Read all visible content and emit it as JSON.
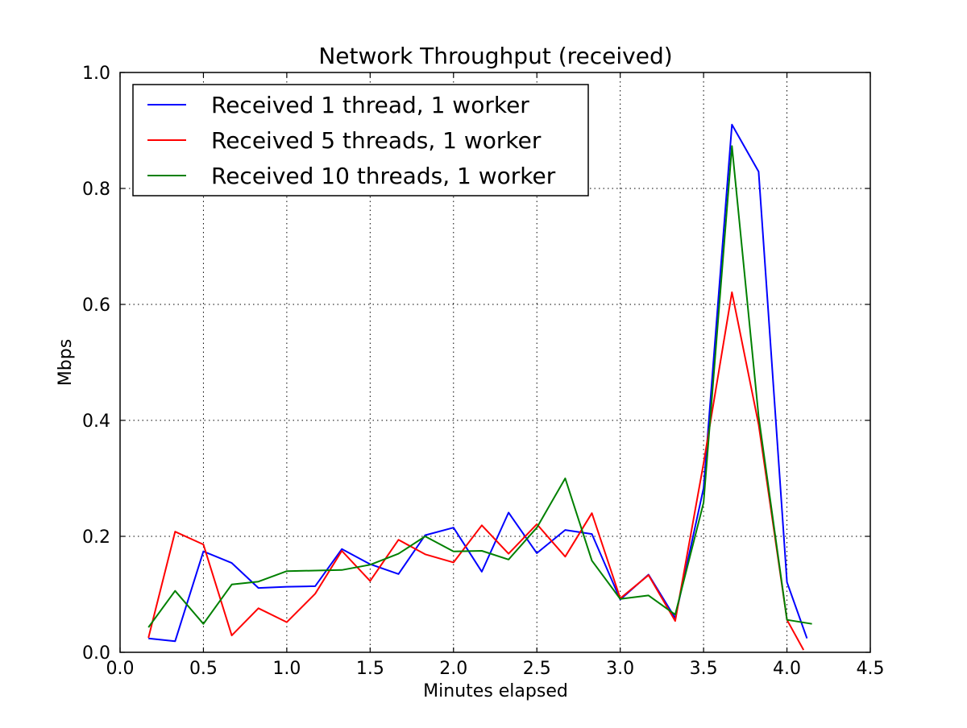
{
  "chart_data": {
    "type": "line",
    "title": "Network Throughput (received)",
    "xlabel": "Minutes elapsed",
    "ylabel": "Mbps",
    "xlim": [
      0.0,
      4.5
    ],
    "ylim": [
      0.0,
      1.0
    ],
    "xticks": [
      0.0,
      0.5,
      1.0,
      1.5,
      2.0,
      2.5,
      3.0,
      3.5,
      4.0,
      4.5
    ],
    "xtick_labels": [
      "0.0",
      "0.5",
      "1.0",
      "1.5",
      "2.0",
      "2.5",
      "3.0",
      "3.5",
      "4.0",
      "4.5"
    ],
    "yticks": [
      0.0,
      0.2,
      0.4,
      0.6,
      0.8,
      1.0
    ],
    "ytick_labels": [
      "0.0",
      "0.2",
      "0.4",
      "0.6",
      "0.8",
      "1.0"
    ],
    "grid": true,
    "grid_style": "dotted",
    "legend_position": "top-left",
    "series": [
      {
        "name": "Received 1 thread, 1 worker",
        "color": "#0000ff",
        "x": [
          0.17,
          0.33,
          0.5,
          0.67,
          0.83,
          1.0,
          1.17,
          1.33,
          1.5,
          1.67,
          1.83,
          2.0,
          2.17,
          2.33,
          2.5,
          2.67,
          2.83,
          3.0,
          3.17,
          3.33,
          3.5,
          3.67,
          3.83,
          4.0,
          4.12
        ],
        "y": [
          0.024,
          0.019,
          0.174,
          0.154,
          0.111,
          0.113,
          0.114,
          0.178,
          0.152,
          0.135,
          0.202,
          0.215,
          0.139,
          0.241,
          0.171,
          0.211,
          0.204,
          0.091,
          0.134,
          0.059,
          0.283,
          0.91,
          0.829,
          0.121,
          0.024
        ]
      },
      {
        "name": "Received 5 threads, 1 worker",
        "color": "#ff0000",
        "x": [
          0.17,
          0.33,
          0.5,
          0.67,
          0.83,
          1.0,
          1.17,
          1.33,
          1.5,
          1.67,
          1.83,
          2.0,
          2.17,
          2.33,
          2.5,
          2.67,
          2.83,
          3.0,
          3.17,
          3.33,
          3.5,
          3.67,
          3.83,
          4.0,
          4.1
        ],
        "y": [
          0.025,
          0.208,
          0.186,
          0.029,
          0.076,
          0.052,
          0.101,
          0.175,
          0.123,
          0.194,
          0.169,
          0.155,
          0.219,
          0.17,
          0.221,
          0.165,
          0.24,
          0.093,
          0.133,
          0.054,
          0.326,
          0.621,
          0.393,
          0.056,
          0.004
        ]
      },
      {
        "name": "Received 10 threads, 1 worker",
        "color": "#008000",
        "x": [
          0.17,
          0.33,
          0.5,
          0.67,
          0.83,
          1.0,
          1.17,
          1.33,
          1.5,
          1.67,
          1.83,
          2.0,
          2.17,
          2.33,
          2.5,
          2.67,
          2.83,
          3.0,
          3.17,
          3.33,
          3.5,
          3.67,
          3.83,
          4.0,
          4.15
        ],
        "y": [
          0.043,
          0.106,
          0.049,
          0.117,
          0.122,
          0.14,
          0.141,
          0.142,
          0.151,
          0.17,
          0.2,
          0.174,
          0.175,
          0.16,
          0.215,
          0.3,
          0.158,
          0.092,
          0.098,
          0.065,
          0.258,
          0.873,
          0.407,
          0.056,
          0.049
        ]
      }
    ]
  }
}
